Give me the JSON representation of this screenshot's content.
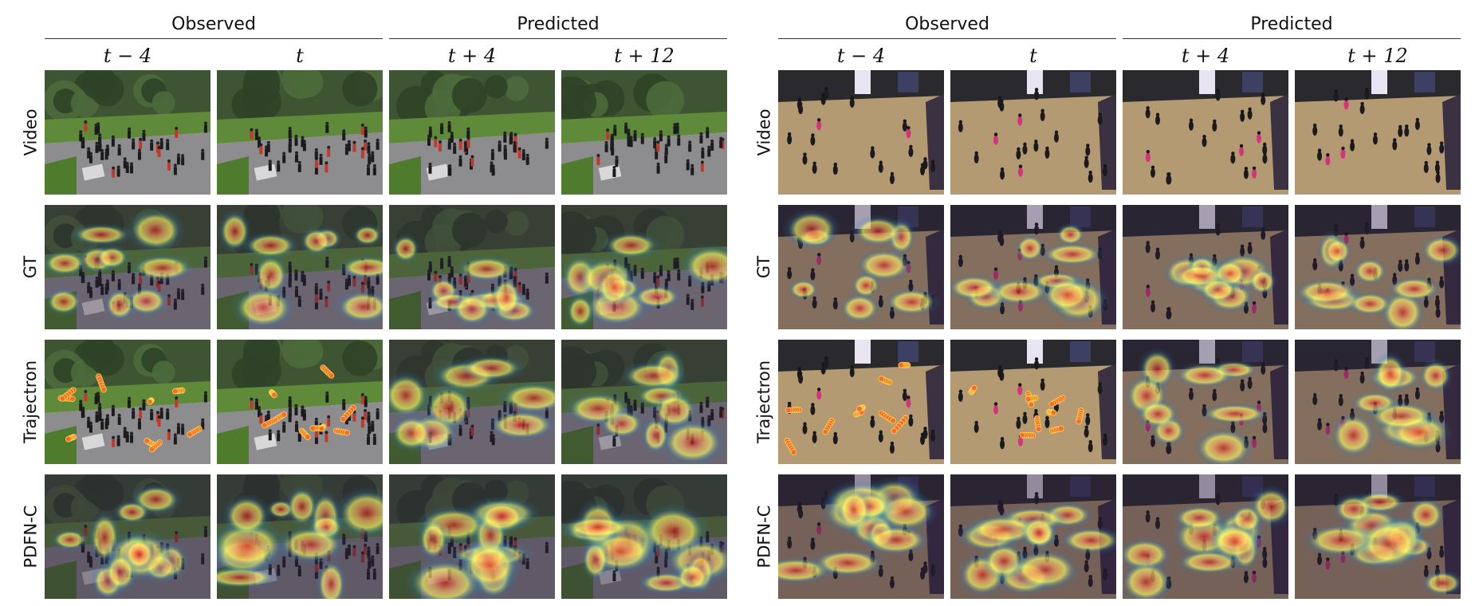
{
  "figure": {
    "panels": [
      {
        "scene": "street",
        "groups": [
          {
            "label": "Observed",
            "span": [
              0,
              1
            ]
          },
          {
            "label": "Predicted",
            "span": [
              2,
              3
            ]
          }
        ],
        "columns": [
          "t − 4",
          "t",
          "t + 4",
          "t + 12"
        ],
        "rows": [
          {
            "label": "Video",
            "style": "video"
          },
          {
            "label": "GT",
            "style": "heatmap"
          },
          {
            "label": "Trajectron",
            "style": "mixed"
          },
          {
            "label": "PDFN-C",
            "style": "heatmap-strong"
          }
        ]
      },
      {
        "scene": "mall",
        "groups": [
          {
            "label": "Observed",
            "span": [
              0,
              1
            ]
          },
          {
            "label": "Predicted",
            "span": [
              2,
              3
            ]
          }
        ],
        "columns": [
          "t − 4",
          "t",
          "t + 4",
          "t + 12"
        ],
        "rows": [
          {
            "label": "Video",
            "style": "video"
          },
          {
            "label": "GT",
            "style": "heatmap"
          },
          {
            "label": "Trajectron",
            "style": "mixed"
          },
          {
            "label": "PDFN-C",
            "style": "heatmap-strong"
          }
        ]
      }
    ],
    "colors": {
      "group_line": "#333333",
      "street_sky": "#cfd3cc",
      "street_trees": "#3f5433",
      "street_grass": "#5f8a3a",
      "street_road": "#8d8d8f",
      "mall_floor": "#b49a72",
      "mall_wall": "#2a2a2e",
      "heat_hot": "#d7191c",
      "heat_warm": "#fdae61",
      "heat_mid": "#ffff66",
      "heat_cool": "#2b83ba",
      "marker": "#f46d2a"
    }
  }
}
